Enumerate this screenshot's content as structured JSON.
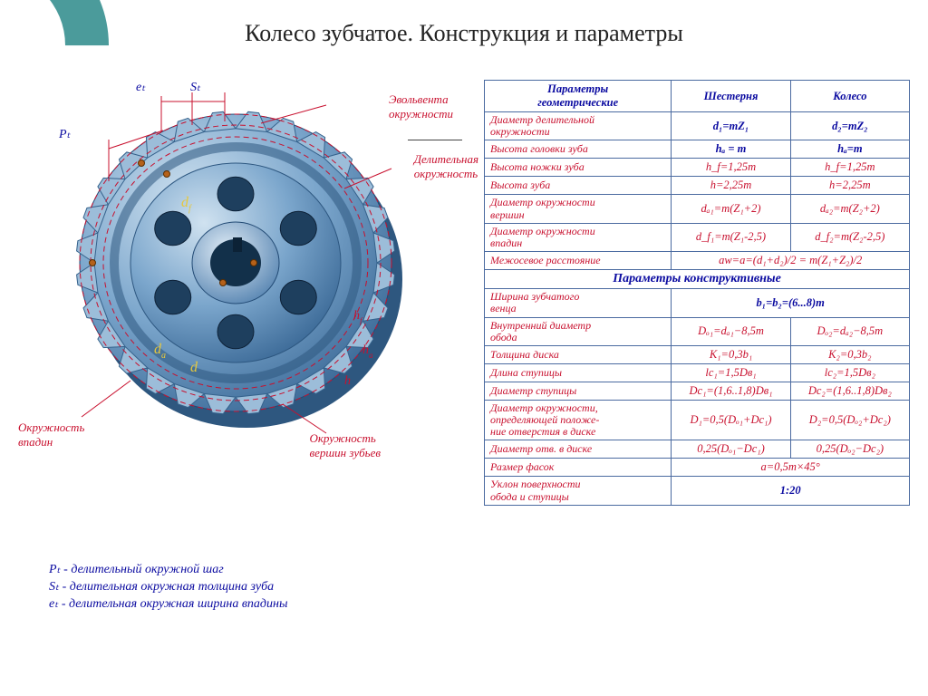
{
  "title": "Колесо зубчатое. Конструкция и параметры",
  "decor_color": "#2c8a8a",
  "diagram": {
    "callouts": {
      "evolvent": "Эвольвента\nокружности",
      "pitch_circle": "Делительная\nокружность",
      "root_circle": "Окружность\nвпадин",
      "tip_circle": "Окружность\nвершин зубьев"
    },
    "top_dims": {
      "et": "eₜ",
      "st": "Sₜ",
      "pt": "Pₜ"
    },
    "internal_dims": {
      "df": "d_f",
      "da": "d_a",
      "d": "d",
      "hf": "h_f",
      "ha": "h_a",
      "h": "h"
    }
  },
  "legend": {
    "pt": "Pₜ - делительный окружной шаг",
    "st": "Sₜ - делительная окружная толщина зуба",
    "et": "eₜ - делительная окружная ширина впадины"
  },
  "table": {
    "head": {
      "param": "Параметры\nгеометрические",
      "c1": "Шестерня",
      "c2": "Колесо"
    },
    "geom_rows": [
      {
        "name": "Диаметр делительной\nокружности",
        "v1": "d₁=mZ₁",
        "v2": "d₂=mZ₂",
        "cls": "val-blue"
      },
      {
        "name": "Высота головки зуба",
        "v1": "hₐ = m",
        "v2": "hₐ=m",
        "cls": "val-blue"
      },
      {
        "name": "Высота ножки зуба",
        "v1": "h_f=1,25m",
        "v2": "h_f=1,25m",
        "cls": "val-red"
      },
      {
        "name": "Высота зуба",
        "v1": "h=2,25m",
        "v2": "h=2,25m",
        "cls": "val-red"
      },
      {
        "name": "Диаметр окружности\nвершин",
        "v1": "dₐ₁=m(Z₁+2)",
        "v2": "dₐ₂=m(Z₂+2)",
        "cls": "val-red"
      },
      {
        "name": "Диаметр окружности\nвпадин",
        "v1": "d_f₁=m(Z₁-2,5)",
        "v2": "d_f₂=m(Z₂-2,5)",
        "cls": "val-red"
      },
      {
        "name": "Межосевое расстояние",
        "v1_span": "aw=a=(d₁+d₂)/2 = m(Z₁+Z₂)/2",
        "cls": "val-red"
      }
    ],
    "section2": "Параметры   конструктивные",
    "constr_rows": [
      {
        "name": "Ширина зубчатого\nвенца",
        "v1_span": "b₁=b₂=(6...8)m",
        "cls": "val-blue"
      },
      {
        "name": "Внутренний диаметр\nобода",
        "v1": "Dₒ₁=dₐ₁−8,5m",
        "v2": "Dₒ₂=dₐ₂−8,5m",
        "cls": "val-red"
      },
      {
        "name": "Толщина диска",
        "v1": "K₁=0,3b₁",
        "v2": "K₂=0,3b₂",
        "cls": "val-red"
      },
      {
        "name": "Длина ступицы",
        "v1": "lc₁=1,5Dв₁",
        "v2": "lc₂=1,5Dв₂",
        "cls": "val-red"
      },
      {
        "name": "Диаметр ступицы",
        "v1": "Dc₁=(1,6..1,8)Dв₁",
        "v2": "Dc₂=(1,6..1,8)Dв₂",
        "cls": "val-red"
      },
      {
        "name": "Диаметр окружности,\nопределяющей положе-\nние отверстия в диске",
        "v1": "D₁=0,5(Dₒ₁+Dc₁)",
        "v2": "D₂=0,5(Dₒ₂+Dc₂)",
        "cls": "val-red"
      },
      {
        "name": "Диаметр отв. в диске",
        "v1": "0,25(Dₒ₁−Dc₁)",
        "v2": "0,25(Dₒ₂−Dc₂)",
        "cls": "val-red"
      },
      {
        "name": "Размер фасок",
        "v1_span": "a=0,5m×45°",
        "cls": "val-red"
      },
      {
        "name": "Уклон поверхности\nобода и ступицы",
        "v1_span": "1:20",
        "cls": "val-blue"
      }
    ]
  },
  "colors": {
    "gear_light": "#b8d0e4",
    "gear_mid": "#6f9bc4",
    "gear_dark": "#3d6a98",
    "gear_edge": "#224a74",
    "dim_red": "#c8102e",
    "dim_yellow": "#e7c83c"
  }
}
